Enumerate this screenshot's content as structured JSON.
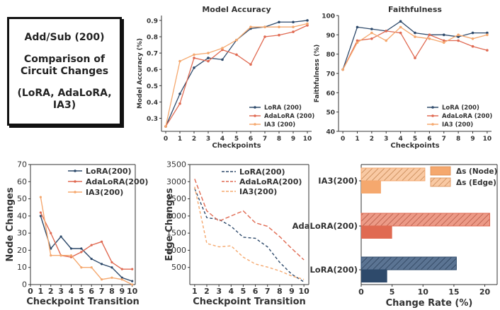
{
  "colors": {
    "lora": "#2e4a6b",
    "adalora": "#e06a52",
    "ia3": "#f5a86e"
  },
  "info_box": {
    "line1": "Add/Sub (200)",
    "line2": "Comparison of",
    "line3": "Circuit Changes",
    "line4": "(LoRA, AdaLoRA, IA3)"
  },
  "chart_data": [
    {
      "id": "accuracy",
      "type": "line",
      "title": "Model Accuracy",
      "xlabel": "Checkpoints",
      "ylabel": "Model Accuracy (%)",
      "x": [
        0,
        1,
        2,
        3,
        4,
        5,
        6,
        7,
        8,
        9,
        10
      ],
      "xticks": [
        "0",
        "1",
        "2",
        "3",
        "4",
        "5",
        "6",
        "7",
        "8",
        "9",
        "10"
      ],
      "ylim": [
        0.22,
        0.93
      ],
      "yticks": [
        0.3,
        0.4,
        0.5,
        0.6,
        0.7,
        0.8,
        0.9
      ],
      "ytick_labels": [
        "0.3",
        "0.4",
        "0.5",
        "0.6",
        "0.7",
        "0.8",
        "0.9"
      ],
      "legend_position": "bottom-right",
      "series": [
        {
          "name": "LoRA (200)",
          "key": "lora",
          "values": [
            0.25,
            0.45,
            0.61,
            0.67,
            0.66,
            0.78,
            0.85,
            0.86,
            0.89,
            0.89,
            0.9
          ]
        },
        {
          "name": "AdaLoRA (200)",
          "key": "adalora",
          "values": [
            0.25,
            0.39,
            0.67,
            0.65,
            0.72,
            0.69,
            0.63,
            0.8,
            0.81,
            0.83,
            0.87
          ]
        },
        {
          "name": "IA3 (200)",
          "key": "ia3",
          "values": [
            0.25,
            0.65,
            0.69,
            0.7,
            0.73,
            0.78,
            0.86,
            0.86,
            0.86,
            0.86,
            0.88
          ]
        }
      ]
    },
    {
      "id": "faith",
      "type": "line",
      "title": "Faithfulness",
      "xlabel": "Checkpoints",
      "ylabel": "Faithfulness (%)",
      "x": [
        0,
        1,
        2,
        3,
        4,
        5,
        6,
        7,
        8,
        9,
        10
      ],
      "xticks": [
        "0",
        "1",
        "2",
        "3",
        "4",
        "5",
        "6",
        "7",
        "8",
        "9",
        "10"
      ],
      "ylim": [
        40,
        100
      ],
      "yticks": [
        40,
        50,
        60,
        70,
        80,
        90,
        100
      ],
      "ytick_labels": [
        "40",
        "50",
        "60",
        "70",
        "80",
        "90",
        "100"
      ],
      "legend_position": "bottom-right",
      "series": [
        {
          "name": "LoRA (200)",
          "key": "lora",
          "values": [
            72,
            94,
            93,
            92,
            97,
            91,
            90,
            90,
            89,
            91,
            91
          ]
        },
        {
          "name": "AdaLoRA (200)",
          "key": "adalora",
          "values": [
            72,
            87,
            88,
            92,
            91,
            78,
            90,
            87,
            87,
            84,
            82
          ]
        },
        {
          "name": "IA3 (200)",
          "key": "ia3",
          "values": [
            72,
            86,
            91,
            87,
            94,
            89,
            88,
            86,
            90,
            88,
            90
          ]
        }
      ]
    },
    {
      "id": "nodes",
      "type": "line",
      "title": "",
      "xlabel": "Checkpoint Transition",
      "ylabel": "Node Changes",
      "x": [
        1,
        2,
        3,
        4,
        5,
        6,
        7,
        8,
        9,
        10
      ],
      "xlim": [
        0,
        10.3
      ],
      "xticks": [
        "0",
        "1",
        "2",
        "3",
        "4",
        "5",
        "6",
        "7",
        "8",
        "9",
        "10"
      ],
      "xtick_values": [
        0,
        1,
        2,
        3,
        4,
        5,
        6,
        7,
        8,
        9,
        10
      ],
      "ylim": [
        0,
        70
      ],
      "yticks": [
        0,
        10,
        20,
        30,
        40,
        50,
        60,
        70
      ],
      "ytick_labels": [
        "0",
        "10",
        "20",
        "30",
        "40",
        "50",
        "60",
        "70"
      ],
      "legend_position": "top-right",
      "series": [
        {
          "name": "LoRA(200)",
          "key": "lora",
          "values": [
            40,
            21,
            28,
            21,
            21,
            15,
            12,
            10,
            4,
            2
          ]
        },
        {
          "name": "AdaLoRA(200)",
          "key": "adalora",
          "values": [
            42,
            30,
            17,
            16,
            19,
            23,
            25,
            13,
            9,
            9
          ]
        },
        {
          "name": "IA3(200)",
          "key": "ia3",
          "values": [
            51,
            17,
            17,
            17,
            10,
            10,
            3,
            4,
            3,
            0
          ]
        }
      ]
    },
    {
      "id": "edges",
      "type": "line",
      "title": "",
      "xlabel": "Checkpoint Transition",
      "ylabel": "Edge Changes",
      "x": [
        1,
        2,
        3,
        4,
        5,
        6,
        7,
        8,
        9,
        10
      ],
      "xlim": [
        0.6,
        10.4
      ],
      "xticks": [
        "1",
        "2",
        "3",
        "4",
        "5",
        "6",
        "7",
        "8",
        "9",
        "10"
      ],
      "xtick_values": [
        1,
        2,
        3,
        4,
        5,
        6,
        7,
        8,
        9,
        10
      ],
      "ylim": [
        0,
        3500
      ],
      "yticks": [
        500,
        1000,
        1500,
        2000,
        2500,
        3000,
        3500
      ],
      "ytick_labels": [
        "500",
        "1000",
        "1500",
        "2000",
        "2500",
        "3000",
        "3500"
      ],
      "legend_position": "top-right",
      "series": [
        {
          "name": "LoRA(200)",
          "key": "lora",
          "values": [
            2800,
            1950,
            1900,
            1700,
            1380,
            1350,
            1100,
            650,
            300,
            80
          ]
        },
        {
          "name": "AdaLoRA(200)",
          "key": "adalora",
          "values": [
            3080,
            2150,
            1850,
            2000,
            2150,
            1800,
            1700,
            1400,
            1050,
            720
          ]
        },
        {
          "name": "IA3(200)",
          "key": "ia3",
          "values": [
            2850,
            1200,
            1100,
            1130,
            800,
            600,
            510,
            400,
            250,
            150
          ]
        }
      ]
    },
    {
      "id": "change",
      "type": "bar",
      "title": "",
      "xlabel": "Change Rate (%)",
      "ylabel": "",
      "orientation": "horizontal",
      "categories": [
        "IA3(200)",
        "AdaLoRA(200)",
        "LoRA(200)"
      ],
      "category_keys": [
        "ia3",
        "adalora",
        "lora"
      ],
      "xlim": [
        0,
        22
      ],
      "xticks": [
        0,
        5,
        10,
        15,
        20
      ],
      "xtick_labels": [
        "0",
        "5",
        "10",
        "15",
        "20"
      ],
      "legend_position": "top-center",
      "series": [
        {
          "name": "Δs (Node)",
          "values": [
            3.2,
            5.0,
            4.2
          ]
        },
        {
          "name": "Δs (Edge)",
          "values": [
            10.3,
            20.8,
            15.4
          ]
        }
      ]
    }
  ]
}
